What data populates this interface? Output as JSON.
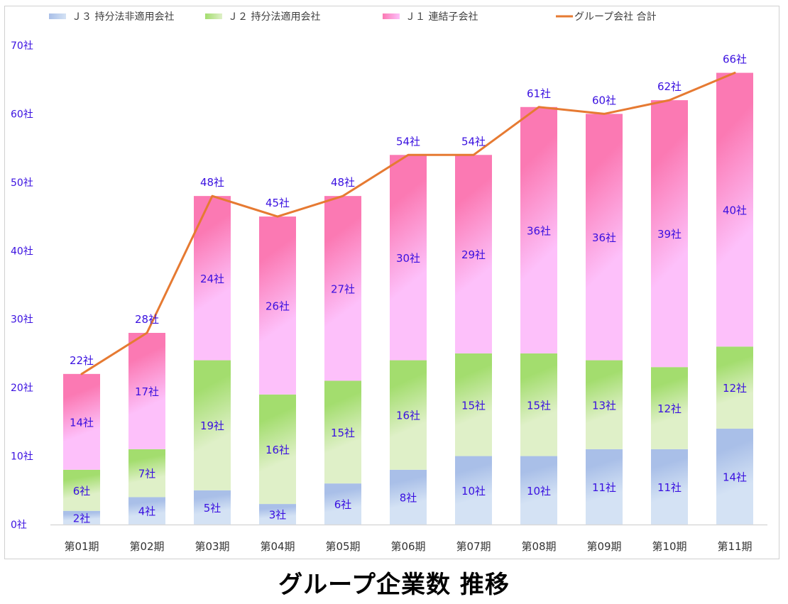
{
  "chart_data": {
    "type": "bar",
    "stacked": true,
    "title": "グループ企業数 推移",
    "xlabel": "",
    "ylabel": "",
    "ylim": [
      0,
      70
    ],
    "ytick_step": 10,
    "yticks": [
      "0社",
      "10社",
      "20社",
      "30社",
      "40社",
      "50社",
      "60社",
      "70社"
    ],
    "unit_suffix": "社",
    "grid": false,
    "legend_position": "top",
    "categories": [
      "第01期",
      "第02期",
      "第03期",
      "第04期",
      "第05期",
      "第06期",
      "第07期",
      "第08期",
      "第09期",
      "第10期",
      "第11期"
    ],
    "series": [
      {
        "name": "Ｊ３ 持分法非適用会社",
        "kind": "bar",
        "color_top": "#a9bfe8",
        "color_bottom": "#d4e2f4",
        "values": [
          2,
          4,
          5,
          3,
          6,
          8,
          10,
          10,
          11,
          11,
          14
        ]
      },
      {
        "name": "Ｊ２ 持分法適用会社",
        "kind": "bar",
        "color_top": "#a3dd6e",
        "color_bottom": "#dff0c8",
        "values": [
          6,
          7,
          19,
          16,
          15,
          16,
          15,
          15,
          13,
          12,
          12
        ]
      },
      {
        "name": "Ｊ１ 連結子会社",
        "kind": "bar",
        "color_top": "#fb79b3",
        "color_bottom": "#fdc0fa",
        "values": [
          14,
          17,
          24,
          26,
          27,
          30,
          29,
          36,
          36,
          39,
          40
        ]
      },
      {
        "name": "グループ会社 合計",
        "kind": "line",
        "color": "#e67a32",
        "values": [
          22,
          28,
          48,
          45,
          48,
          54,
          54,
          61,
          60,
          62,
          66
        ]
      }
    ],
    "label_color": "#3a10e0"
  }
}
